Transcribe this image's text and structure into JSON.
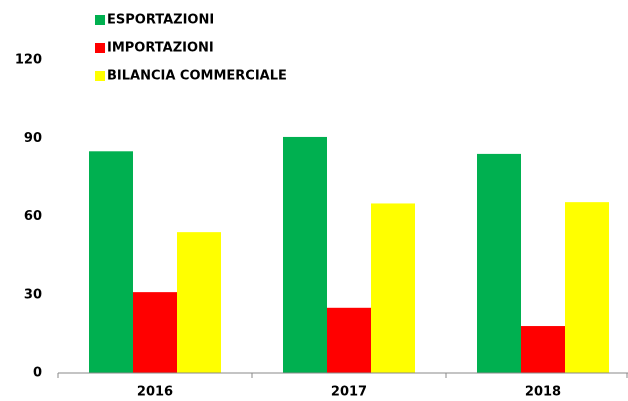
{
  "chart_data": {
    "type": "bar",
    "categories": [
      "2016",
      "2017",
      "2018"
    ],
    "series": [
      {
        "name": "ESPORTAZIONI",
        "color": "#00b050",
        "values": [
          85,
          90.5,
          84
        ]
      },
      {
        "name": "IMPORTAZIONI",
        "color": "#ff0000",
        "values": [
          31,
          25,
          18
        ]
      },
      {
        "name": "BILANCIA COMMERCIALE",
        "color": "#ffff00",
        "values": [
          54,
          65,
          65.5
        ]
      }
    ],
    "ylim": [
      0,
      120
    ],
    "yticks": [
      0,
      30,
      60,
      90,
      120
    ],
    "grid": false,
    "legend": "top-left"
  }
}
